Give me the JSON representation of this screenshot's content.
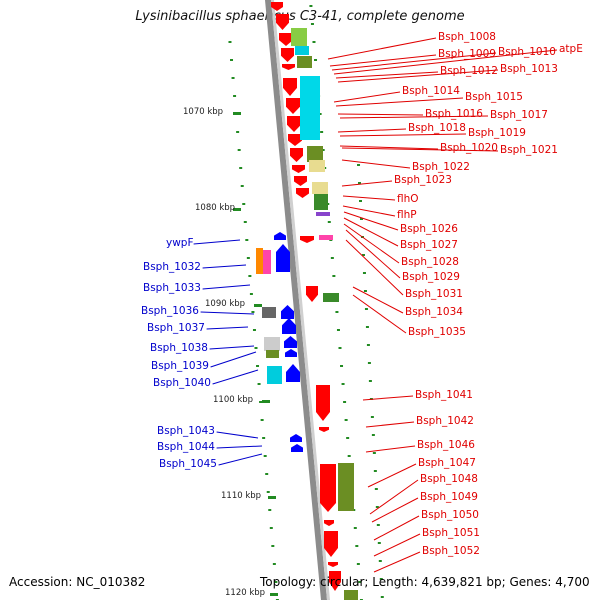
{
  "title": "Lysinibacillus sphaericus C3-41, complete genome",
  "accession": "Accession: NC_010382",
  "topology": "Topology: circular; Length: 4,639,821 bp; Genes: 4,700",
  "colors": {
    "backbone": "#8c8c8c",
    "cds_red": "#ff0000",
    "cds_blue": "#0000ff",
    "rna_cyan": "#00ccdd",
    "olive": "#6b8e23",
    "tick_green": "#228b22",
    "label_red": "#e00000",
    "label_blue": "#0000cc"
  },
  "kbp_ticks": [
    "1070 kbp",
    "1080 kbp",
    "1090 kbp",
    "1100 kbp",
    "1110 kbp",
    "1120 kbp"
  ],
  "right_labels": [
    "Bsph_1008",
    "Bsph_1009",
    "Bsph_1010",
    "atpE",
    "Bsph_1012",
    "Bsph_1013",
    "Bsph_1014",
    "Bsph_1015",
    "Bsph_1016",
    "Bsph_1017",
    "Bsph_1018",
    "Bsph_1019",
    "Bsph_1020",
    "Bsph_1021",
    "Bsph_1022",
    "Bsph_1023",
    "flhO",
    "flhP",
    "Bsph_1026",
    "Bsph_1027",
    "Bsph_1028",
    "Bsph_1029",
    "Bsph_1031",
    "Bsph_1034",
    "Bsph_1035",
    "Bsph_1041",
    "Bsph_1042",
    "Bsph_1046",
    "Bsph_1047",
    "Bsph_1048",
    "Bsph_1049",
    "Bsph_1050",
    "Bsph_1051",
    "Bsph_1052"
  ],
  "left_labels": [
    "ywpF",
    "Bsph_1032",
    "Bsph_1033",
    "Bsph_1036",
    "Bsph_1037",
    "Bsph_1038",
    "Bsph_1039",
    "Bsph_1040",
    "Bsph_1043",
    "Bsph_1044",
    "Bsph_1045"
  ]
}
